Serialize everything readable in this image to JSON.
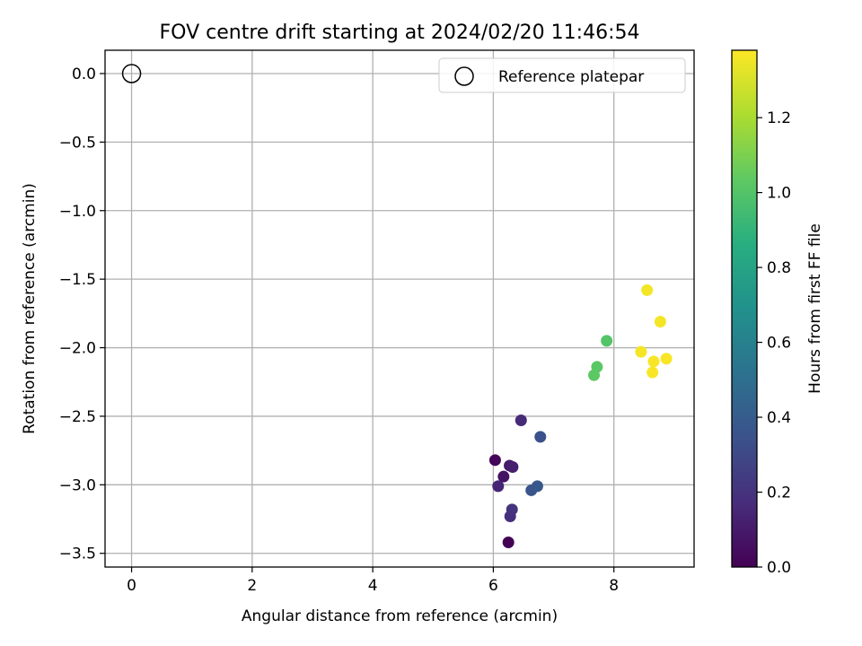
{
  "chart_data": {
    "type": "scatter",
    "title": "FOV centre drift starting at 2024/02/20 11:46:54",
    "xlabel": "Angular distance from reference (arcmin)",
    "ylabel": "Rotation from reference (arcmin)",
    "xlim": [
      -0.44,
      9.33
    ],
    "ylim": [
      -3.6,
      0.17
    ],
    "xticks": [
      0,
      2,
      4,
      6,
      8
    ],
    "xtick_labels": [
      "0",
      "2",
      "4",
      "6",
      "8"
    ],
    "yticks": [
      0.0,
      -0.5,
      -1.0,
      -1.5,
      -2.0,
      -2.5,
      -3.0,
      -3.5
    ],
    "ytick_labels": [
      "0.0",
      "−0.5",
      "−1.0",
      "−1.5",
      "−2.0",
      "−2.5",
      "−3.0",
      "−3.5"
    ],
    "grid": true,
    "legend": {
      "placement": "top-right",
      "entries": [
        "Reference platepar"
      ]
    },
    "reference_point": {
      "x": 0,
      "y": 0
    },
    "colorbar": {
      "label": "Hours from first FF file",
      "colormap": "viridis",
      "range": [
        0,
        1.38
      ],
      "ticks": [
        0.0,
        0.2,
        0.4,
        0.6,
        0.8,
        1.0,
        1.2
      ],
      "tick_labels": [
        "0.0",
        "0.2",
        "0.4",
        "0.6",
        "0.8",
        "1.0",
        "1.2"
      ]
    },
    "points": [
      {
        "x": 6.25,
        "y": -3.42,
        "hours": 0.0
      },
      {
        "x": 6.03,
        "y": -2.82,
        "hours": 0.02
      },
      {
        "x": 6.17,
        "y": -2.94,
        "hours": 0.07
      },
      {
        "x": 6.27,
        "y": -2.86,
        "hours": 0.1
      },
      {
        "x": 6.32,
        "y": -2.87,
        "hours": 0.12
      },
      {
        "x": 6.08,
        "y": -3.01,
        "hours": 0.14
      },
      {
        "x": 6.46,
        "y": -2.53,
        "hours": 0.16
      },
      {
        "x": 6.28,
        "y": -3.23,
        "hours": 0.18
      },
      {
        "x": 6.31,
        "y": -3.18,
        "hours": 0.2
      },
      {
        "x": 6.78,
        "y": -2.65,
        "hours": 0.34
      },
      {
        "x": 6.63,
        "y": -3.04,
        "hours": 0.36
      },
      {
        "x": 6.73,
        "y": -3.01,
        "hours": 0.38
      },
      {
        "x": 7.88,
        "y": -1.95,
        "hours": 1.0
      },
      {
        "x": 7.72,
        "y": -2.14,
        "hours": 1.02
      },
      {
        "x": 7.67,
        "y": -2.2,
        "hours": 1.03
      },
      {
        "x": 8.55,
        "y": -1.58,
        "hours": 1.36
      },
      {
        "x": 8.77,
        "y": -1.81,
        "hours": 1.36
      },
      {
        "x": 8.45,
        "y": -2.03,
        "hours": 1.36
      },
      {
        "x": 8.66,
        "y": -2.1,
        "hours": 1.37
      },
      {
        "x": 8.87,
        "y": -2.08,
        "hours": 1.37
      },
      {
        "x": 8.64,
        "y": -2.18,
        "hours": 1.37
      }
    ]
  }
}
